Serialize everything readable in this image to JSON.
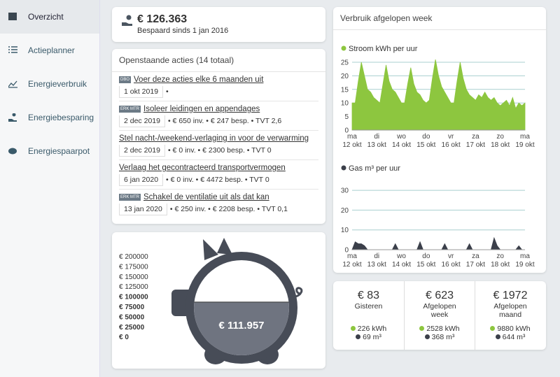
{
  "sidebar": {
    "items": [
      "Overzicht",
      "Actieplanner",
      "Energieverbruik",
      "Energiebesparing",
      "Energiespaarpot"
    ],
    "active": 0
  },
  "savings": {
    "amount": "€ 126.363",
    "since": "Bespaard sinds 1 jan 2016"
  },
  "actions": {
    "title": "Openstaande acties (14 totaal)",
    "items": [
      {
        "badge": "DBO",
        "title": "Voer deze acties elke 6 maanden uit",
        "date": "1 okt 2019",
        "details": "•"
      },
      {
        "badge": "ERK MTR",
        "title": "Isoleer leidingen en appendages",
        "date": "2 dec 2019",
        "details": "• € 650 inv. • € 247 besp. • TVT 2,6"
      },
      {
        "title": "Stel nacht-/weekend-verlaging in voor de verwarming",
        "date": "2 dec 2019",
        "details": "• € 0 inv. • € 2300 besp. • TVT 0"
      },
      {
        "title": "Verlaag het gecontracteerd transportvermogen",
        "date": "6 jan 2020",
        "details": "• € 0 inv. • € 4472 besp. • TVT 0"
      },
      {
        "badge": "ERK MTR",
        "title": "Schakel de ventilatie uit als dat kan",
        "date": "13 jan 2020",
        "details": "• € 250 inv. • € 2208 besp. • TVT 0,1"
      }
    ]
  },
  "piggy": {
    "value": 111957,
    "value_label": "€ 111.957",
    "ylim": [
      0,
      200000
    ],
    "scale": [
      {
        "value": 200000,
        "label": "€ 200000"
      },
      {
        "value": 175000,
        "label": "€ 175000"
      },
      {
        "value": 150000,
        "label": "€ 150000"
      },
      {
        "value": 125000,
        "label": "€ 125000"
      },
      {
        "value": 100000,
        "label": "€ 100000"
      },
      {
        "value": 75000,
        "label": "€ 75000"
      },
      {
        "value": 50000,
        "label": "€ 50000"
      },
      {
        "value": 25000,
        "label": "€ 25000"
      },
      {
        "value": 0,
        "label": "€ 0"
      }
    ]
  },
  "usage": {
    "title": "Verbruik afgelopen week",
    "xticks": [
      {
        "day": "ma",
        "date": "12 okt"
      },
      {
        "day": "di",
        "date": "13 okt"
      },
      {
        "day": "wo",
        "date": "14 okt"
      },
      {
        "day": "do",
        "date": "15 okt"
      },
      {
        "day": "vr",
        "date": "16 okt"
      },
      {
        "day": "za",
        "date": "17 okt"
      },
      {
        "day": "zo",
        "date": "18 okt"
      },
      {
        "day": "ma",
        "date": "19 okt"
      }
    ],
    "charts": [
      {
        "type": "area",
        "name": "Stroom kWh per uur",
        "color": "#8dc63f",
        "ylim": [
          0,
          28
        ],
        "yticks": [
          0,
          5,
          10,
          15,
          20,
          25
        ],
        "grid": true,
        "values": [
          10,
          10,
          18,
          25,
          20,
          15,
          14,
          12,
          11,
          10,
          17,
          24,
          18,
          15,
          14,
          12,
          10,
          10,
          17,
          23,
          17,
          14,
          13,
          11,
          10,
          11,
          19,
          26,
          20,
          16,
          14,
          12,
          10,
          10,
          18,
          25,
          19,
          15,
          13,
          12,
          11,
          13,
          12,
          14,
          12,
          11,
          12,
          10,
          9,
          10,
          11,
          9,
          12,
          8,
          10,
          9,
          10
        ]
      },
      {
        "type": "area",
        "name": "Gas m³ per uur",
        "color": "#3b3f4a",
        "ylim": [
          0,
          38
        ],
        "yticks": [
          0,
          10,
          20,
          30
        ],
        "grid": true,
        "values": [
          0,
          4,
          3,
          3,
          2,
          0,
          0,
          0,
          0,
          0,
          0,
          0,
          0,
          0,
          3,
          0,
          0,
          0,
          0,
          0,
          0,
          0,
          4,
          0,
          0,
          0,
          0,
          0,
          0,
          0,
          3,
          0,
          0,
          0,
          0,
          0,
          0,
          0,
          3,
          0,
          0,
          0,
          0,
          0,
          0,
          0,
          6,
          2,
          0,
          0,
          0,
          0,
          0,
          0,
          2,
          0,
          0
        ]
      }
    ]
  },
  "summary": [
    {
      "cost": "€ 83",
      "period": "Gisteren",
      "power": "226 kWh",
      "gas": "69 m³"
    },
    {
      "cost": "€ 623",
      "period": "Afgelopen week",
      "power": "2528 kWh",
      "gas": "368 m³"
    },
    {
      "cost": "€ 1972",
      "period": "Afgelopen maand",
      "power": "9880 kWh",
      "gas": "644 m³"
    }
  ]
}
